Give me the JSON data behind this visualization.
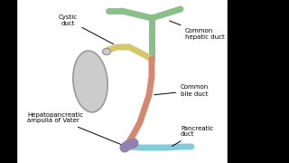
{
  "bg_color": "#ffffff",
  "border_color": "#111111",
  "colors": {
    "common_hepatic": "#88c088",
    "cystic_duct": "#d4c86a",
    "common_bile": "#d48870",
    "pancreatic": "#80ccd8",
    "ampulla": "#9080b0",
    "gallbladder_fill": "#cccccc",
    "gallbladder_edge": "#999999"
  },
  "labels": {
    "cystic_duct": "Cystic\nduct",
    "common_hepatic": "Common\nhepatic duct",
    "common_bile": "Common\nbile duct",
    "hepatopancreatic": "Hepatopancreatic\nampulla of Vater",
    "pancreatic": "Pancreatic\nduct"
  },
  "lw": 5,
  "font_size": 5.0
}
